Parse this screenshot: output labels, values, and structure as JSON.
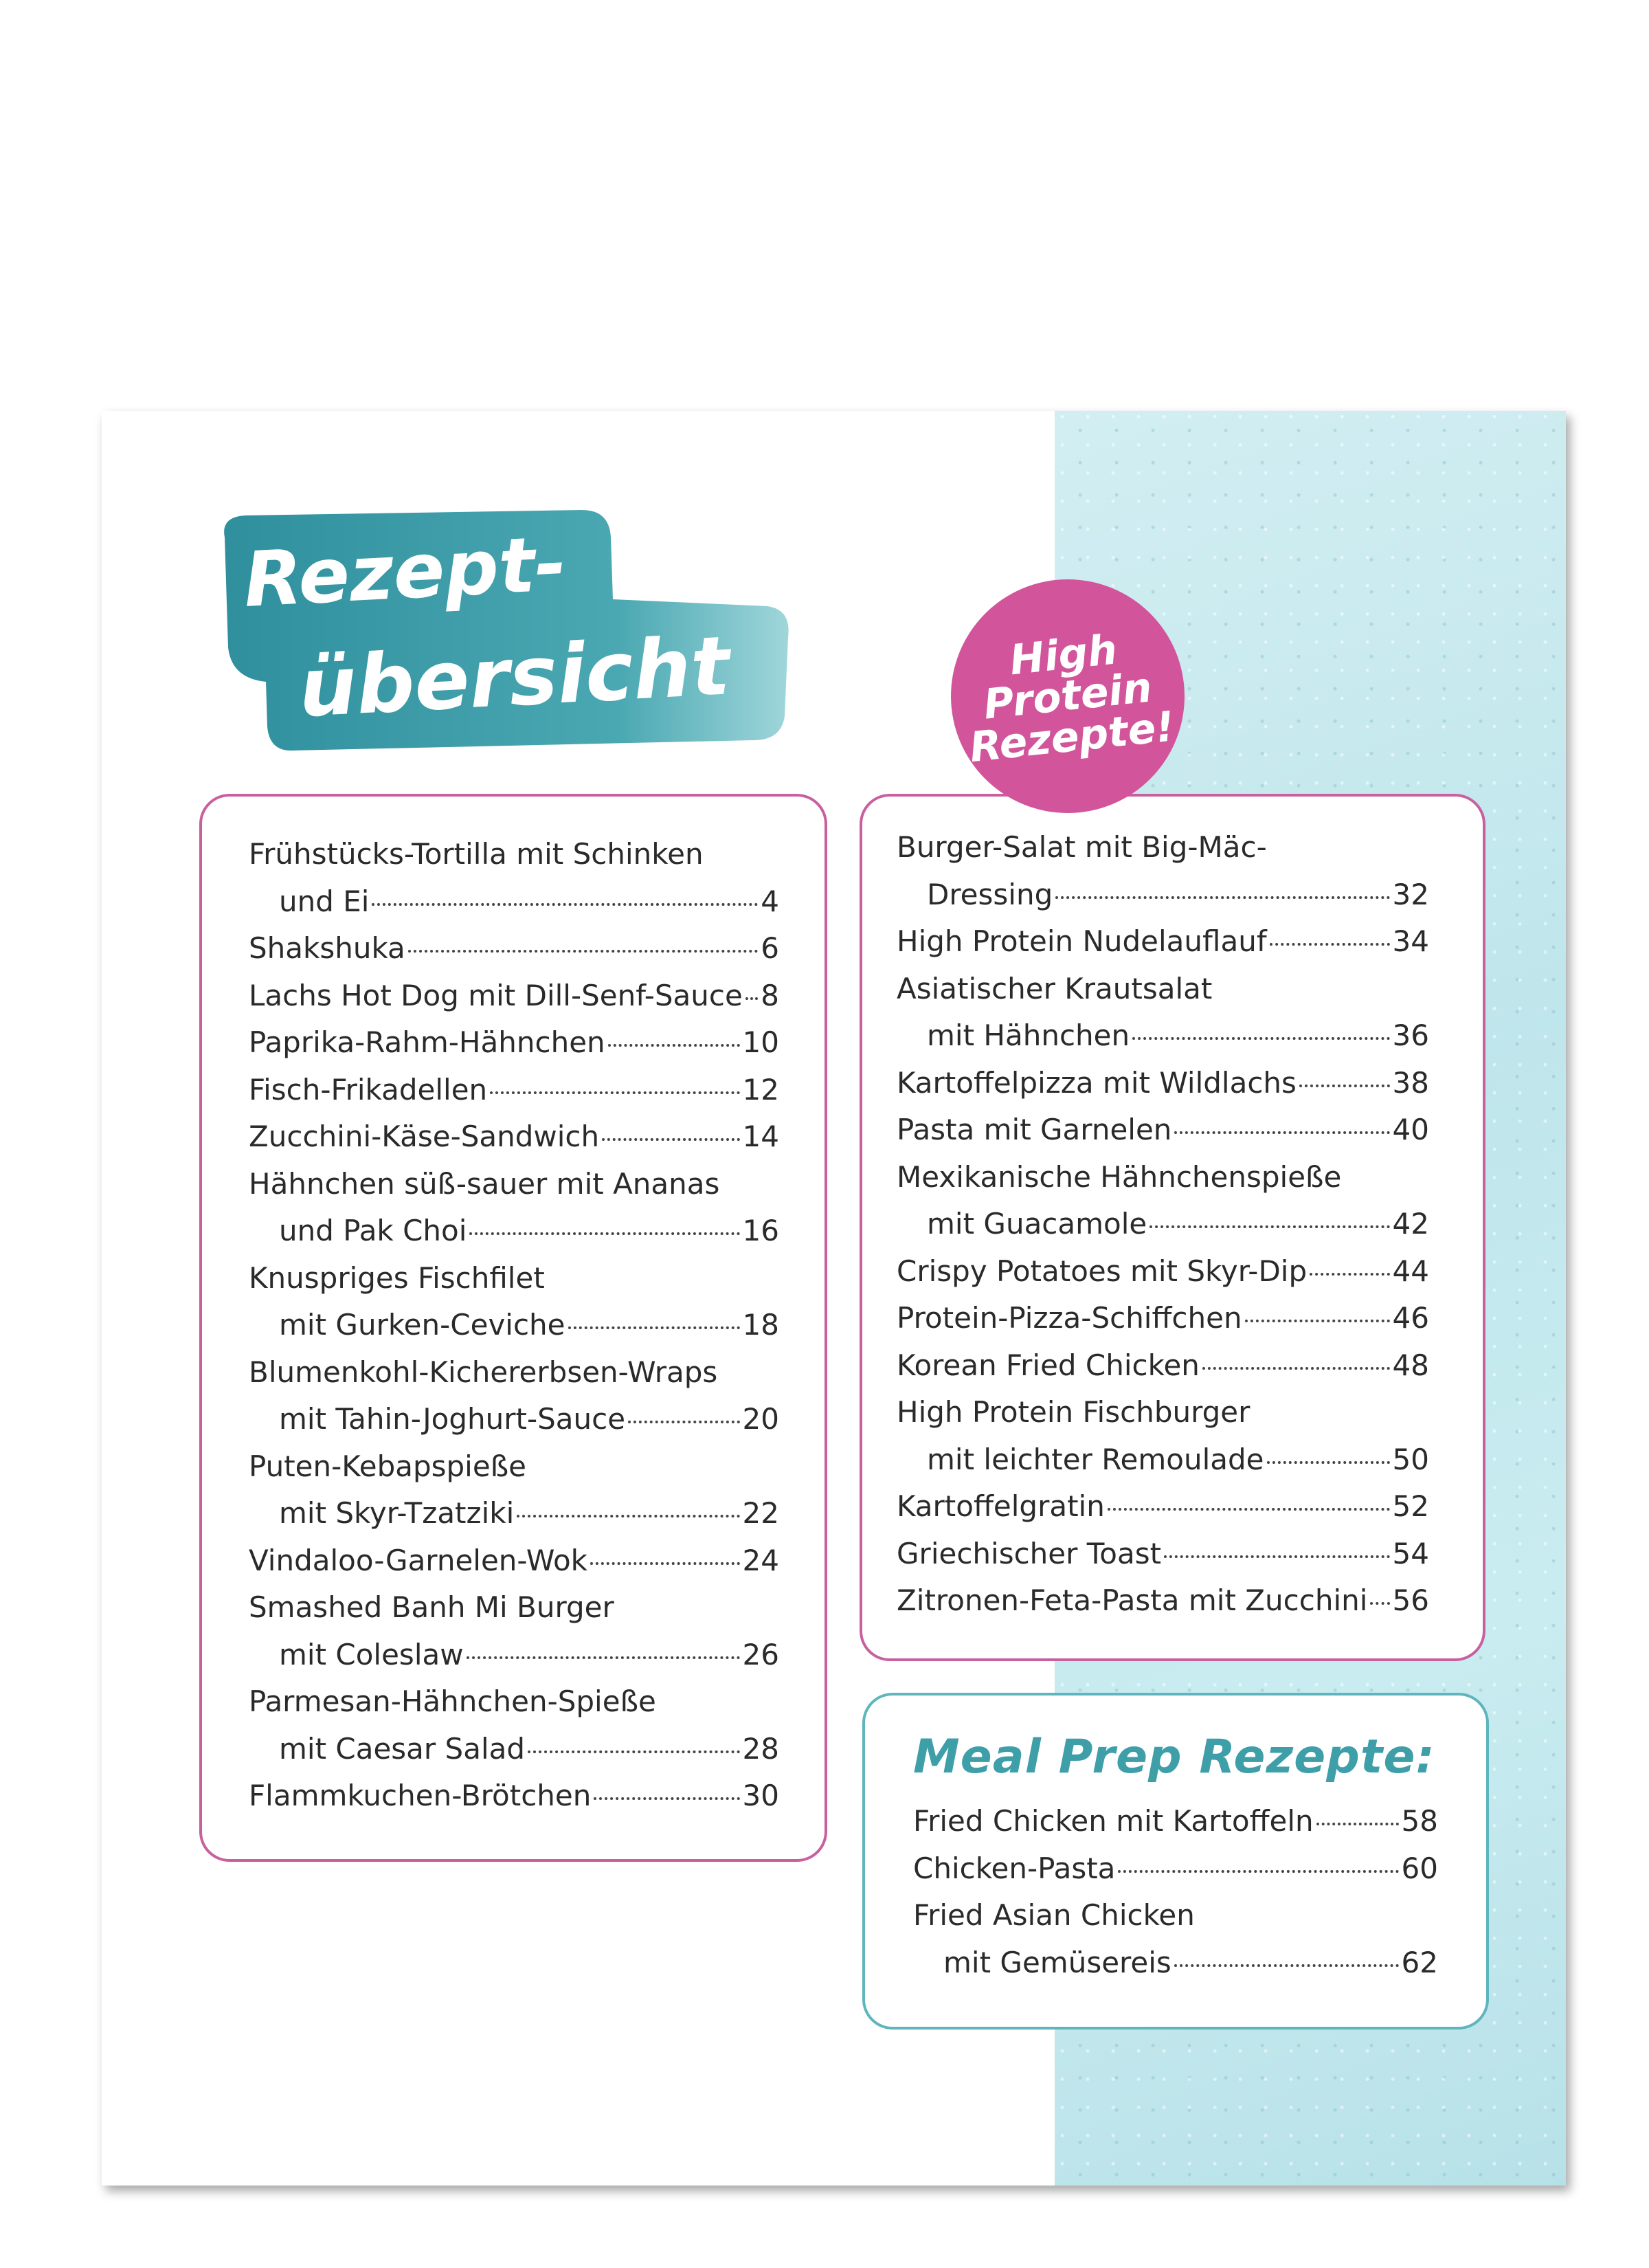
{
  "title": {
    "line1": "Rezept-",
    "line2": "übersicht",
    "color": "#3a9aa6"
  },
  "badge_circle": {
    "lines": [
      "High",
      "Protein",
      "Rezepte!"
    ],
    "color": "#d2559b"
  },
  "left_list": [
    {
      "text": "Frühstücks-Tortilla mit Schinken",
      "page": null,
      "indent": false
    },
    {
      "text": "und Ei",
      "page": "4",
      "indent": true
    },
    {
      "text": "Shakshuka",
      "page": "6",
      "indent": false
    },
    {
      "text": "Lachs Hot Dog mit Dill-Senf-Sauce",
      "page": "8",
      "indent": false
    },
    {
      "text": "Paprika-Rahm-Hähnchen",
      "page": "10",
      "indent": false
    },
    {
      "text": "Fisch-Frikadellen",
      "page": "12",
      "indent": false
    },
    {
      "text": "Zucchini-Käse-Sandwich",
      "page": "14",
      "indent": false
    },
    {
      "text": "Hähnchen süß-sauer mit Ananas",
      "page": null,
      "indent": false
    },
    {
      "text": "und Pak Choi",
      "page": "16",
      "indent": true
    },
    {
      "text": "Knuspriges Fischfilet",
      "page": null,
      "indent": false
    },
    {
      "text": "mit Gurken-Ceviche",
      "page": "18",
      "indent": true
    },
    {
      "text": "Blumenkohl-Kichererbsen-Wraps",
      "page": null,
      "indent": false
    },
    {
      "text": "mit Tahin-Joghurt-Sauce",
      "page": "20",
      "indent": true
    },
    {
      "text": "Puten-Kebapspieße",
      "page": null,
      "indent": false
    },
    {
      "text": "mit Skyr-Tzatziki",
      "page": "22",
      "indent": true
    },
    {
      "text": "Vindaloo-Garnelen-Wok",
      "page": "24",
      "indent": false
    },
    {
      "text": "Smashed Banh Mi Burger",
      "page": null,
      "indent": false
    },
    {
      "text": "mit Coleslaw",
      "page": "26",
      "indent": true
    },
    {
      "text": "Parmesan-Hähnchen-Spieße",
      "page": null,
      "indent": false
    },
    {
      "text": "mit Caesar Salad",
      "page": "28",
      "indent": true
    },
    {
      "text": "Flammkuchen-Brötchen",
      "page": "30",
      "indent": false
    }
  ],
  "right_list": [
    {
      "text": "Burger-Salat mit Big-Mäc-",
      "page": null,
      "indent": false
    },
    {
      "text": "Dressing",
      "page": "32",
      "indent": true
    },
    {
      "text": "High Protein Nudelauflauf",
      "page": "34",
      "indent": false
    },
    {
      "text": "Asiatischer Krautsalat",
      "page": null,
      "indent": false
    },
    {
      "text": "mit Hähnchen",
      "page": "36",
      "indent": true
    },
    {
      "text": "Kartoffelpizza mit Wildlachs",
      "page": "38",
      "indent": false
    },
    {
      "text": "Pasta mit Garnelen",
      "page": "40",
      "indent": false
    },
    {
      "text": "Mexikanische Hähnchenspieße",
      "page": null,
      "indent": false
    },
    {
      "text": "mit Guacamole",
      "page": "42",
      "indent": true
    },
    {
      "text": "Crispy Potatoes mit Skyr-Dip",
      "page": "44",
      "indent": false
    },
    {
      "text": "Protein-Pizza-Schiffchen",
      "page": "46",
      "indent": false
    },
    {
      "text": "Korean Fried Chicken",
      "page": "48",
      "indent": false
    },
    {
      "text": "High Protein Fischburger",
      "page": null,
      "indent": false
    },
    {
      "text": "mit leichter Remoulade",
      "page": "50",
      "indent": true
    },
    {
      "text": "Kartoffelgratin",
      "page": "52",
      "indent": false
    },
    {
      "text": "Griechischer Toast",
      "page": "54",
      "indent": false
    },
    {
      "text": "Zitronen-Feta-Pasta mit Zucchini",
      "page": "56",
      "indent": false
    }
  ],
  "meal_prep": {
    "title": "Meal Prep Rezepte:",
    "items": [
      {
        "text": "Fried Chicken mit Kartoffeln",
        "page": "58",
        "indent": false
      },
      {
        "text": "Chicken-Pasta",
        "page": "60",
        "indent": false
      },
      {
        "text": "Fried Asian Chicken",
        "page": null,
        "indent": false
      },
      {
        "text": "mit Gemüsereis",
        "page": "62",
        "indent": true
      }
    ]
  },
  "colors": {
    "pink_border": "#c8609e",
    "teal_border": "#5fb5bd",
    "texture": "#c6e9ee"
  }
}
